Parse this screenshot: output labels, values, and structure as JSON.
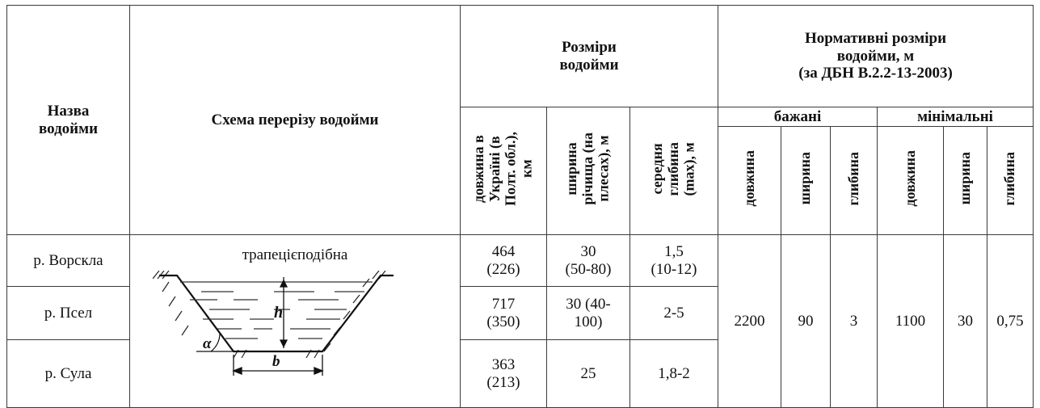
{
  "header": {
    "col_name": "Назва\nводойми",
    "col_schema": "Схема перерізу водойми",
    "group_sizes": "Розміри\nводойми",
    "group_norm": "Нормативні розміри\nводойми, м\n(за ДБН В.2.2-13-2003)",
    "sub_length": "довжина в\nУкраїні (в\nПолт. обл.),\nкм",
    "sub_width": "ширина\nрічища (на\nплесах), м",
    "sub_depth": "середня\nглибина\n(max), м",
    "group_desired": "бажані",
    "group_minimal": "мінімальні",
    "norm_length": "довжина",
    "norm_width": "ширина",
    "norm_depth": "глибина"
  },
  "schema": {
    "label": "трапецієподібна",
    "symbol_h": "h",
    "symbol_alpha": "α",
    "symbol_b": "b"
  },
  "rows": [
    {
      "name": "р. Ворскла",
      "length": "464\n(226)",
      "width": "30\n(50-80)",
      "depth": "1,5\n(10-12)"
    },
    {
      "name": "р. Псел",
      "length": "717\n(350)",
      "width": "30 (40-\n100)",
      "depth": "2-5"
    },
    {
      "name": "р. Сула",
      "length": "363\n(213)",
      "width": "25",
      "depth": "1,8-2"
    }
  ],
  "norms": {
    "desired": {
      "length": "2200",
      "width": "90",
      "depth": "3"
    },
    "minimal": {
      "length": "1100",
      "width": "30",
      "depth": "0,75"
    }
  }
}
